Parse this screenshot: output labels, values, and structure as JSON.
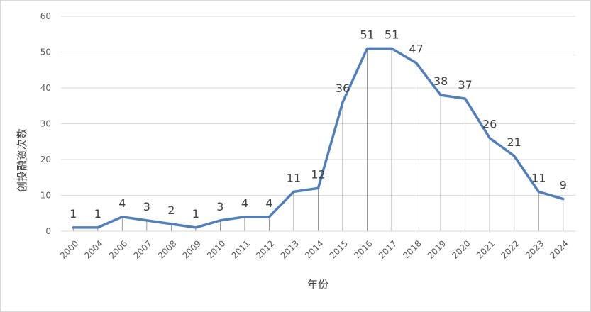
{
  "chart_data": {
    "type": "line",
    "xlabel": "年份",
    "ylabel": "创投融资次数",
    "ylim": [
      0,
      60
    ],
    "yticks": [
      0,
      10,
      20,
      30,
      40,
      50,
      60
    ],
    "categories": [
      "2000",
      "2004",
      "2006",
      "2007",
      "2008",
      "2009",
      "2010",
      "2011",
      "2012",
      "2013",
      "2014",
      "2015",
      "2016",
      "2017",
      "2018",
      "2019",
      "2020",
      "2021",
      "2022",
      "2023",
      "2024"
    ],
    "series": [
      {
        "values": [
          1,
          1,
          4,
          3,
          2,
          1,
          3,
          4,
          4,
          11,
          12,
          36,
          51,
          51,
          47,
          38,
          37,
          26,
          21,
          11,
          9
        ]
      }
    ],
    "grid": true,
    "drop_lines": true,
    "data_labels": true,
    "line_color": "#4f7fbf",
    "grid_color": "#d9d9d9",
    "drop_line_color": "#7f7f7f"
  }
}
